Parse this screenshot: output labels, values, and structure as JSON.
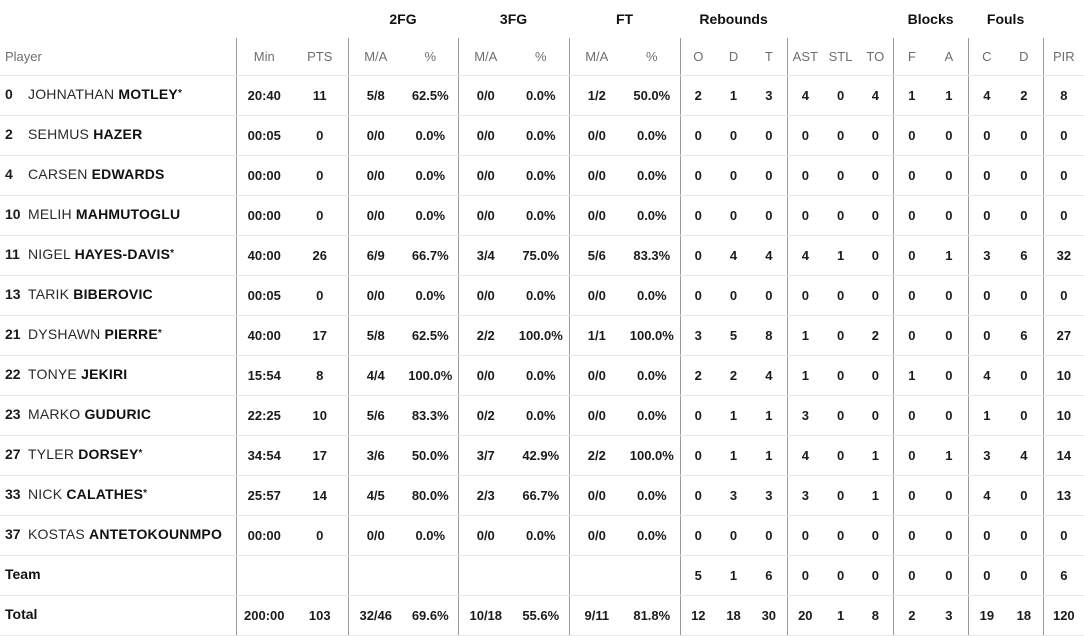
{
  "starter_mark": "*",
  "colors": {
    "text": "#1b1b1b",
    "header_text": "#6e6e6e",
    "row_line": "#e6e6e6",
    "column_line": "#9a9a9a",
    "background": "#ffffff"
  },
  "table": {
    "groups": {
      "fg2": "2FG",
      "fg3": "3FG",
      "ft": "FT",
      "rebounds": "Rebounds",
      "blocks": "Blocks",
      "fouls": "Fouls"
    },
    "columns": {
      "player": "Player",
      "min": "Min",
      "pts": "PTS",
      "ma": "M/A",
      "pct": "%",
      "reb_o": "O",
      "reb_d": "D",
      "reb_t": "T",
      "ast": "AST",
      "stl": "STL",
      "to": "TO",
      "blk_f": "F",
      "blk_a": "A",
      "foul_c": "C",
      "foul_d": "D",
      "pir": "PIR"
    }
  },
  "players": [
    {
      "number": "0",
      "first": "JOHNATHAN",
      "last": "MOTLEY",
      "starter": true,
      "min": "20:40",
      "pts": "11",
      "fg2_ma": "5/8",
      "fg2_pct": "62.5%",
      "fg3_ma": "0/0",
      "fg3_pct": "0.0%",
      "ft_ma": "1/2",
      "ft_pct": "50.0%",
      "reb_o": "2",
      "reb_d": "1",
      "reb_t": "3",
      "ast": "4",
      "stl": "0",
      "to": "4",
      "blk_f": "1",
      "blk_a": "1",
      "foul_c": "4",
      "foul_d": "2",
      "pir": "8"
    },
    {
      "number": "2",
      "first": "SEHMUS",
      "last": "HAZER",
      "starter": false,
      "min": "00:05",
      "pts": "0",
      "fg2_ma": "0/0",
      "fg2_pct": "0.0%",
      "fg3_ma": "0/0",
      "fg3_pct": "0.0%",
      "ft_ma": "0/0",
      "ft_pct": "0.0%",
      "reb_o": "0",
      "reb_d": "0",
      "reb_t": "0",
      "ast": "0",
      "stl": "0",
      "to": "0",
      "blk_f": "0",
      "blk_a": "0",
      "foul_c": "0",
      "foul_d": "0",
      "pir": "0"
    },
    {
      "number": "4",
      "first": "CARSEN",
      "last": "EDWARDS",
      "starter": false,
      "min": "00:00",
      "pts": "0",
      "fg2_ma": "0/0",
      "fg2_pct": "0.0%",
      "fg3_ma": "0/0",
      "fg3_pct": "0.0%",
      "ft_ma": "0/0",
      "ft_pct": "0.0%",
      "reb_o": "0",
      "reb_d": "0",
      "reb_t": "0",
      "ast": "0",
      "stl": "0",
      "to": "0",
      "blk_f": "0",
      "blk_a": "0",
      "foul_c": "0",
      "foul_d": "0",
      "pir": "0"
    },
    {
      "number": "10",
      "first": "MELIH",
      "last": "MAHMUTOGLU",
      "starter": false,
      "min": "00:00",
      "pts": "0",
      "fg2_ma": "0/0",
      "fg2_pct": "0.0%",
      "fg3_ma": "0/0",
      "fg3_pct": "0.0%",
      "ft_ma": "0/0",
      "ft_pct": "0.0%",
      "reb_o": "0",
      "reb_d": "0",
      "reb_t": "0",
      "ast": "0",
      "stl": "0",
      "to": "0",
      "blk_f": "0",
      "blk_a": "0",
      "foul_c": "0",
      "foul_d": "0",
      "pir": "0"
    },
    {
      "number": "11",
      "first": "NIGEL",
      "last": "HAYES-DAVIS",
      "starter": true,
      "min": "40:00",
      "pts": "26",
      "fg2_ma": "6/9",
      "fg2_pct": "66.7%",
      "fg3_ma": "3/4",
      "fg3_pct": "75.0%",
      "ft_ma": "5/6",
      "ft_pct": "83.3%",
      "reb_o": "0",
      "reb_d": "4",
      "reb_t": "4",
      "ast": "4",
      "stl": "1",
      "to": "0",
      "blk_f": "0",
      "blk_a": "1",
      "foul_c": "3",
      "foul_d": "6",
      "pir": "32"
    },
    {
      "number": "13",
      "first": "TARIK",
      "last": "BIBEROVIC",
      "starter": false,
      "min": "00:05",
      "pts": "0",
      "fg2_ma": "0/0",
      "fg2_pct": "0.0%",
      "fg3_ma": "0/0",
      "fg3_pct": "0.0%",
      "ft_ma": "0/0",
      "ft_pct": "0.0%",
      "reb_o": "0",
      "reb_d": "0",
      "reb_t": "0",
      "ast": "0",
      "stl": "0",
      "to": "0",
      "blk_f": "0",
      "blk_a": "0",
      "foul_c": "0",
      "foul_d": "0",
      "pir": "0"
    },
    {
      "number": "21",
      "first": "DYSHAWN",
      "last": "PIERRE",
      "starter": true,
      "min": "40:00",
      "pts": "17",
      "fg2_ma": "5/8",
      "fg2_pct": "62.5%",
      "fg3_ma": "2/2",
      "fg3_pct": "100.0%",
      "ft_ma": "1/1",
      "ft_pct": "100.0%",
      "reb_o": "3",
      "reb_d": "5",
      "reb_t": "8",
      "ast": "1",
      "stl": "0",
      "to": "2",
      "blk_f": "0",
      "blk_a": "0",
      "foul_c": "0",
      "foul_d": "6",
      "pir": "27"
    },
    {
      "number": "22",
      "first": "TONYE",
      "last": "JEKIRI",
      "starter": false,
      "min": "15:54",
      "pts": "8",
      "fg2_ma": "4/4",
      "fg2_pct": "100.0%",
      "fg3_ma": "0/0",
      "fg3_pct": "0.0%",
      "ft_ma": "0/0",
      "ft_pct": "0.0%",
      "reb_o": "2",
      "reb_d": "2",
      "reb_t": "4",
      "ast": "1",
      "stl": "0",
      "to": "0",
      "blk_f": "1",
      "blk_a": "0",
      "foul_c": "4",
      "foul_d": "0",
      "pir": "10"
    },
    {
      "number": "23",
      "first": "MARKO",
      "last": "GUDURIC",
      "starter": false,
      "min": "22:25",
      "pts": "10",
      "fg2_ma": "5/6",
      "fg2_pct": "83.3%",
      "fg3_ma": "0/2",
      "fg3_pct": "0.0%",
      "ft_ma": "0/0",
      "ft_pct": "0.0%",
      "reb_o": "0",
      "reb_d": "1",
      "reb_t": "1",
      "ast": "3",
      "stl": "0",
      "to": "0",
      "blk_f": "0",
      "blk_a": "0",
      "foul_c": "1",
      "foul_d": "0",
      "pir": "10"
    },
    {
      "number": "27",
      "first": "TYLER",
      "last": "DORSEY",
      "starter": true,
      "min": "34:54",
      "pts": "17",
      "fg2_ma": "3/6",
      "fg2_pct": "50.0%",
      "fg3_ma": "3/7",
      "fg3_pct": "42.9%",
      "ft_ma": "2/2",
      "ft_pct": "100.0%",
      "reb_o": "0",
      "reb_d": "1",
      "reb_t": "1",
      "ast": "4",
      "stl": "0",
      "to": "1",
      "blk_f": "0",
      "blk_a": "1",
      "foul_c": "3",
      "foul_d": "4",
      "pir": "14"
    },
    {
      "number": "33",
      "first": "NICK",
      "last": "CALATHES",
      "starter": true,
      "min": "25:57",
      "pts": "14",
      "fg2_ma": "4/5",
      "fg2_pct": "80.0%",
      "fg3_ma": "2/3",
      "fg3_pct": "66.7%",
      "ft_ma": "0/0",
      "ft_pct": "0.0%",
      "reb_o": "0",
      "reb_d": "3",
      "reb_t": "3",
      "ast": "3",
      "stl": "0",
      "to": "1",
      "blk_f": "0",
      "blk_a": "0",
      "foul_c": "4",
      "foul_d": "0",
      "pir": "13"
    },
    {
      "number": "37",
      "first": "KOSTAS",
      "last": "ANTETOKOUNMPO",
      "starter": false,
      "min": "00:00",
      "pts": "0",
      "fg2_ma": "0/0",
      "fg2_pct": "0.0%",
      "fg3_ma": "0/0",
      "fg3_pct": "0.0%",
      "ft_ma": "0/0",
      "ft_pct": "0.0%",
      "reb_o": "0",
      "reb_d": "0",
      "reb_t": "0",
      "ast": "0",
      "stl": "0",
      "to": "0",
      "blk_f": "0",
      "blk_a": "0",
      "foul_c": "0",
      "foul_d": "0",
      "pir": "0"
    }
  ],
  "summary_rows": [
    {
      "label": "Team",
      "min": "",
      "pts": "",
      "fg2_ma": "",
      "fg2_pct": "",
      "fg3_ma": "",
      "fg3_pct": "",
      "ft_ma": "",
      "ft_pct": "",
      "reb_o": "5",
      "reb_d": "1",
      "reb_t": "6",
      "ast": "0",
      "stl": "0",
      "to": "0",
      "blk_f": "0",
      "blk_a": "0",
      "foul_c": "0",
      "foul_d": "0",
      "pir": "6"
    },
    {
      "label": "Total",
      "min": "200:00",
      "pts": "103",
      "fg2_ma": "32/46",
      "fg2_pct": "69.6%",
      "fg3_ma": "10/18",
      "fg3_pct": "55.6%",
      "ft_ma": "9/11",
      "ft_pct": "81.8%",
      "reb_o": "12",
      "reb_d": "18",
      "reb_t": "30",
      "ast": "20",
      "stl": "1",
      "to": "8",
      "blk_f": "2",
      "blk_a": "3",
      "foul_c": "19",
      "foul_d": "18",
      "pir": "120"
    }
  ]
}
